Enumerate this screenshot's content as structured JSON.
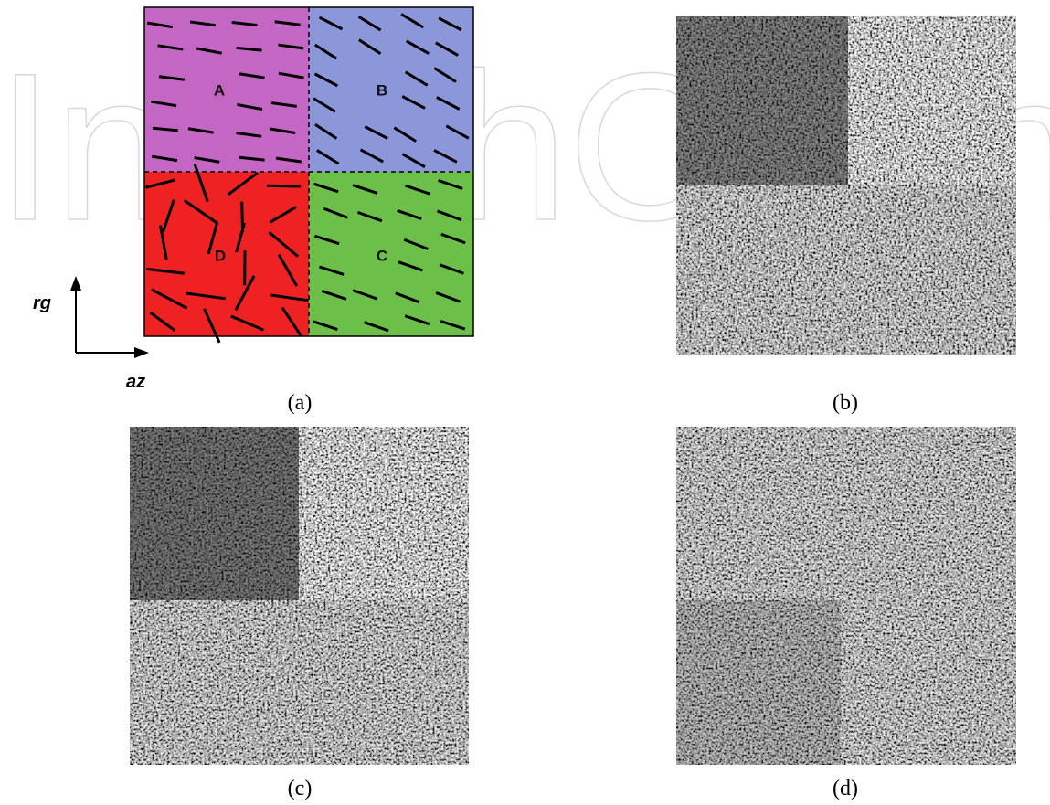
{
  "watermark": "IntechOpen",
  "diagram": {
    "regions": [
      "A",
      "B",
      "C",
      "D"
    ],
    "axes": {
      "vertical": "rg",
      "horizontal": "az"
    }
  },
  "panels": [
    {
      "label": "(a)"
    },
    {
      "label": "(b)"
    },
    {
      "label": "(c)"
    },
    {
      "label": "(d)"
    }
  ]
}
